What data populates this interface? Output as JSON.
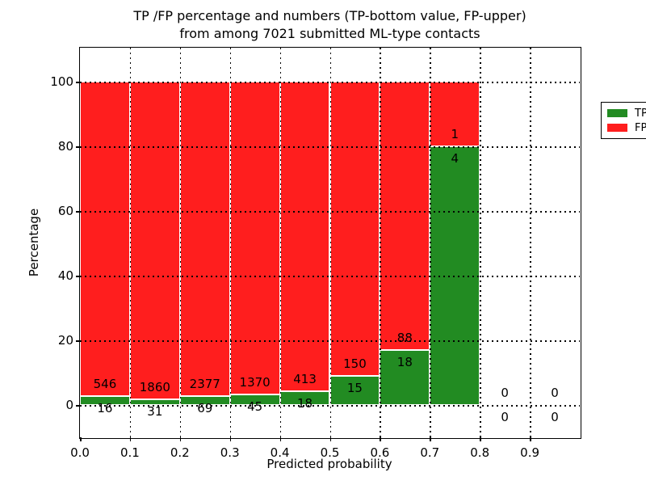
{
  "figure": {
    "title_line1": "TP /FP percentage and numbers (TP-bottom value, FP-upper)",
    "title_line2": "from among 7021 submitted ML-type contacts"
  },
  "chart_data": {
    "type": "bar",
    "stacked": true,
    "title": "TP /FP percentage and numbers (TP-bottom value, FP-upper) from among 7021 submitted ML-type contacts",
    "xlabel": "Predicted probability",
    "ylabel": "Percentage",
    "xlim": [
      0.0,
      1.0
    ],
    "ylim": [
      -10.0,
      110.5
    ],
    "xticks": [
      "0.0",
      "0.1",
      "0.2",
      "0.3",
      "0.4",
      "0.5",
      "0.6",
      "0.7",
      "0.8",
      "0.9"
    ],
    "yticks": [
      "0",
      "20",
      "40",
      "60",
      "80",
      "100"
    ],
    "grid": "dotted, drawn above bars",
    "legend": {
      "position": "upper right",
      "entries": [
        {
          "label": "TP",
          "color": "#228b22"
        },
        {
          "label": "FP",
          "color": "#ff1e1e"
        }
      ]
    },
    "colors": {
      "tp": "#228b22",
      "fp": "#ff1e1e",
      "bar_edge": "#ffffff"
    },
    "label_offset_pct": 3.75,
    "bins": [
      {
        "range": [
          0.0,
          0.1
        ],
        "tp": 16,
        "fp": 546
      },
      {
        "range": [
          0.1,
          0.2
        ],
        "tp": 31,
        "fp": 1860
      },
      {
        "range": [
          0.2,
          0.3
        ],
        "tp": 69,
        "fp": 2377
      },
      {
        "range": [
          0.3,
          0.4
        ],
        "tp": 45,
        "fp": 1370
      },
      {
        "range": [
          0.4,
          0.5
        ],
        "tp": 18,
        "fp": 413
      },
      {
        "range": [
          0.5,
          0.6
        ],
        "tp": 15,
        "fp": 150
      },
      {
        "range": [
          0.6,
          0.7
        ],
        "tp": 18,
        "fp": 88
      },
      {
        "range": [
          0.7,
          0.8
        ],
        "tp": 4,
        "fp": 1
      },
      {
        "range": [
          0.8,
          0.9
        ],
        "tp": 0,
        "fp": 0
      },
      {
        "range": [
          0.9,
          1.0
        ],
        "tp": 0,
        "fp": 0
      }
    ]
  }
}
